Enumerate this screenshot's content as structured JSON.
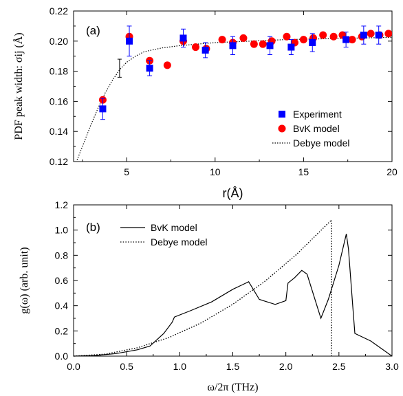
{
  "chart_data": [
    {
      "type": "scatter",
      "panel_label": "(a)",
      "xlabel": "r(Å)",
      "ylabel": "PDF peak width: σij (Å)",
      "xlim": [
        2,
        20
      ],
      "ylim": [
        0.12,
        0.22
      ],
      "xticks": [
        "5",
        "10",
        "15",
        "20"
      ],
      "yticks": [
        "0.12",
        "0.14",
        "0.16",
        "0.18",
        "0.20",
        "0.22"
      ],
      "legend_position": "bottom-right",
      "series": [
        {
          "name": "Experiment",
          "marker": "square",
          "color": "#0000ff",
          "points": [
            {
              "x": 3.65,
              "y": 0.155,
              "err": 0.007
            },
            {
              "x": 5.15,
              "y": 0.2,
              "err": 0.01
            },
            {
              "x": 6.3,
              "y": 0.182,
              "err": 0.005
            },
            {
              "x": 8.2,
              "y": 0.202,
              "err": 0.006
            },
            {
              "x": 9.45,
              "y": 0.194,
              "err": 0.005
            },
            {
              "x": 11.0,
              "y": 0.197,
              "err": 0.006
            },
            {
              "x": 13.1,
              "y": 0.197,
              "err": 0.006
            },
            {
              "x": 14.3,
              "y": 0.196,
              "err": 0.005
            },
            {
              "x": 15.5,
              "y": 0.199,
              "err": 0.006
            },
            {
              "x": 17.4,
              "y": 0.201,
              "err": 0.005
            },
            {
              "x": 18.4,
              "y": 0.204,
              "err": 0.006
            },
            {
              "x": 19.25,
              "y": 0.204,
              "err": 0.006
            }
          ]
        },
        {
          "name": "BvK model",
          "marker": "circle",
          "color": "#ff0000",
          "points": [
            {
              "x": 3.65,
              "y": 0.161
            },
            {
              "x": 5.15,
              "y": 0.203
            },
            {
              "x": 6.3,
              "y": 0.187
            },
            {
              "x": 7.3,
              "y": 0.184
            },
            {
              "x": 8.2,
              "y": 0.2
            },
            {
              "x": 8.9,
              "y": 0.196
            },
            {
              "x": 9.5,
              "y": 0.195
            },
            {
              "x": 10.4,
              "y": 0.201
            },
            {
              "x": 11.0,
              "y": 0.199
            },
            {
              "x": 11.6,
              "y": 0.202
            },
            {
              "x": 12.2,
              "y": 0.198
            },
            {
              "x": 12.7,
              "y": 0.198
            },
            {
              "x": 13.2,
              "y": 0.2
            },
            {
              "x": 14.05,
              "y": 0.203
            },
            {
              "x": 14.5,
              "y": 0.199
            },
            {
              "x": 15.0,
              "y": 0.201
            },
            {
              "x": 15.55,
              "y": 0.202
            },
            {
              "x": 16.1,
              "y": 0.204
            },
            {
              "x": 16.7,
              "y": 0.203
            },
            {
              "x": 17.2,
              "y": 0.204
            },
            {
              "x": 17.75,
              "y": 0.201
            },
            {
              "x": 18.3,
              "y": 0.203
            },
            {
              "x": 18.8,
              "y": 0.205
            },
            {
              "x": 19.3,
              "y": 0.204
            },
            {
              "x": 19.8,
              "y": 0.205
            }
          ]
        },
        {
          "name": "Debye model",
          "line": "dotted",
          "color": "#000000",
          "x": [
            2.2,
            2.6,
            3.0,
            3.4,
            3.8,
            4.2,
            4.6,
            5.0,
            5.5,
            6.0,
            7.0,
            8.0,
            9.0,
            10.0,
            12.0,
            14.0,
            16.0,
            18.0,
            20.0
          ],
          "y": [
            0.121,
            0.133,
            0.145,
            0.156,
            0.166,
            0.174,
            0.181,
            0.186,
            0.19,
            0.193,
            0.1955,
            0.197,
            0.198,
            0.199,
            0.2,
            0.201,
            0.2015,
            0.202,
            0.2025
          ],
          "errorbar": {
            "x": 4.6,
            "y": 0.182,
            "err": 0.006
          }
        }
      ]
    },
    {
      "type": "line",
      "panel_label": "(b)",
      "xlabel": "ω/2π (THz)",
      "ylabel": "g(ω) (arb. unit)",
      "xlim": [
        0,
        3.0
      ],
      "ylim": [
        0,
        1.2
      ],
      "xticks": [
        "0.0",
        "0.5",
        "1.0",
        "1.5",
        "2.0",
        "2.5",
        "3.0"
      ],
      "yticks": [
        "0.0",
        "0.2",
        "0.4",
        "0.6",
        "0.8",
        "1.0",
        "1.2"
      ],
      "legend_position": "top-left",
      "series": [
        {
          "name": "BvK model",
          "line": "solid",
          "color": "#000000",
          "x": [
            0,
            0.2,
            0.4,
            0.6,
            0.72,
            0.85,
            0.93,
            0.95,
            1.1,
            1.3,
            1.5,
            1.6,
            1.65,
            1.75,
            1.9,
            2.0,
            2.02,
            2.08,
            2.15,
            2.2,
            2.3,
            2.33,
            2.4,
            2.5,
            2.57,
            2.59,
            2.63,
            2.65,
            2.8,
            2.95,
            3.0
          ],
          "y": [
            0,
            0.005,
            0.02,
            0.05,
            0.08,
            0.18,
            0.27,
            0.31,
            0.36,
            0.43,
            0.53,
            0.57,
            0.59,
            0.45,
            0.41,
            0.44,
            0.58,
            0.62,
            0.68,
            0.65,
            0.38,
            0.3,
            0.45,
            0.72,
            0.97,
            0.85,
            0.4,
            0.18,
            0.12,
            0.03,
            0.0
          ]
        },
        {
          "name": "Debye model",
          "line": "dotted",
          "color": "#000000",
          "x": [
            0,
            0.3,
            0.6,
            0.9,
            1.2,
            1.5,
            1.8,
            2.1,
            2.43,
            2.43,
            2.43
          ],
          "y": [
            0,
            0.016,
            0.066,
            0.148,
            0.263,
            0.411,
            0.592,
            0.806,
            1.08,
            0.5,
            0.0
          ]
        }
      ]
    }
  ]
}
